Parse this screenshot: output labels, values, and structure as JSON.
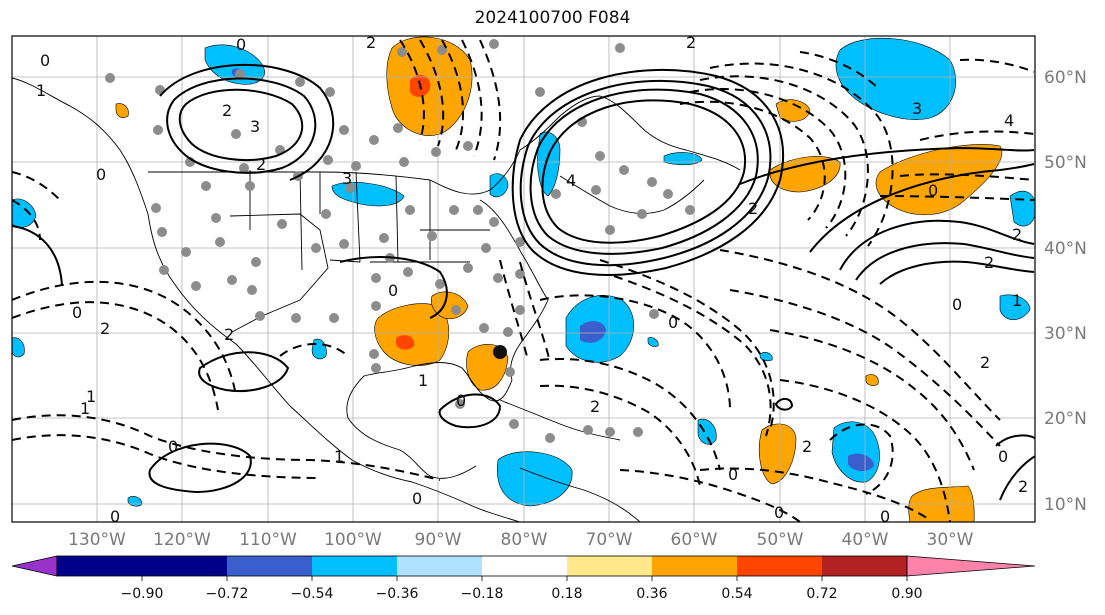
{
  "title": "2024100700 F084",
  "map": {
    "lon_labels": [
      "130°W",
      "120°W",
      "110°W",
      "100°W",
      "90°W",
      "80°W",
      "70°W",
      "60°W",
      "50°W",
      "40°W",
      "30°W"
    ],
    "lat_labels": [
      "60°N",
      "50°N",
      "40°N",
      "30°N",
      "20°N",
      "10°N"
    ],
    "contour_labels": [
      "0",
      "2",
      "0",
      "1",
      "3",
      "2",
      "3",
      "2",
      "0",
      "2",
      "4",
      "2",
      "4",
      "0",
      "3",
      "2",
      "2",
      "1",
      "0",
      "0",
      "2",
      "0",
      "1",
      "1",
      "0",
      "2",
      "2",
      "0",
      "1",
      "0",
      "0",
      "2",
      "0",
      "0",
      "0",
      "2",
      "0",
      "1",
      "0",
      "2"
    ],
    "colors": {
      "contour": "#000000",
      "grid": "#b0b0b0",
      "dots": "#8c8c8c"
    }
  },
  "colorbar": {
    "ticks": [
      "−0.90",
      "−0.72",
      "−0.54",
      "−0.36",
      "−0.18",
      "0.18",
      "0.36",
      "0.54",
      "0.72",
      "0.90"
    ],
    "colors": [
      "#9932cc",
      "#00008b",
      "#3a5fcd",
      "#00bfff",
      "#b0e2ff",
      "#ffffff",
      "#ffe88a",
      "#ffa500",
      "#ff4500",
      "#b22222",
      "#ff82ab"
    ]
  }
}
